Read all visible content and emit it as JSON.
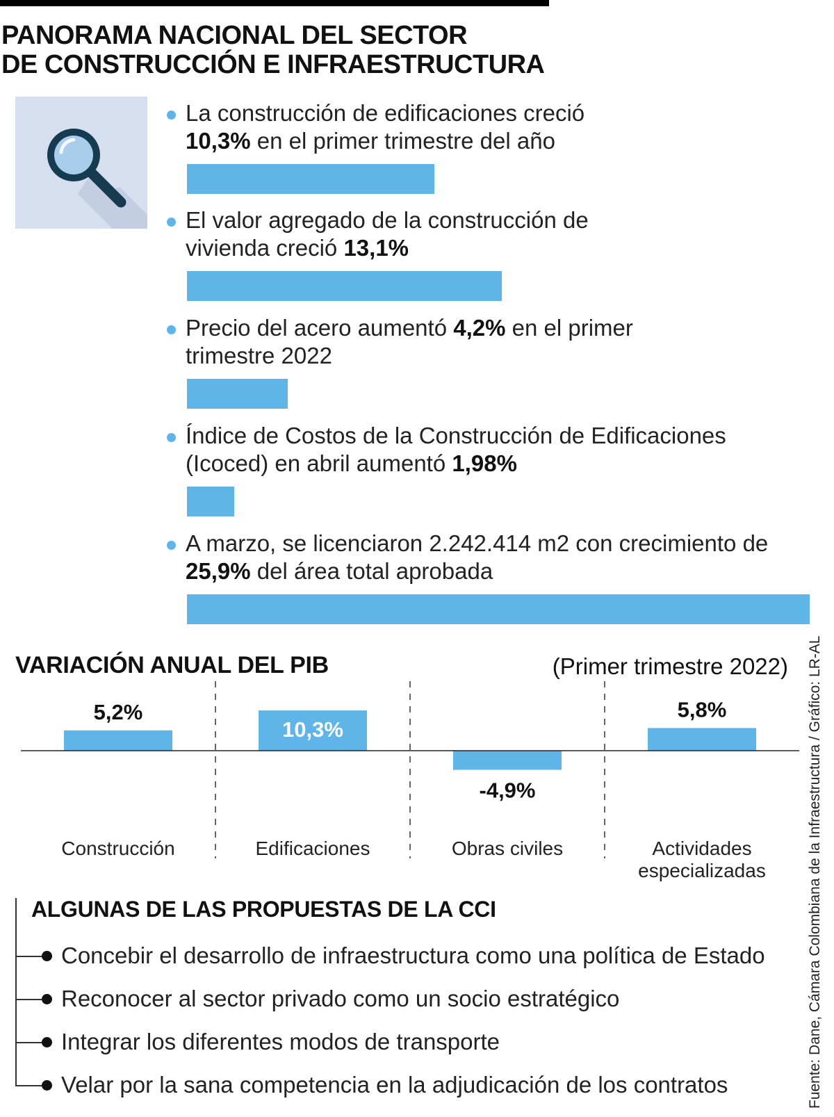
{
  "title": {
    "line1": "PANORAMA NACIONAL DEL SECTOR",
    "line2": "DE CONSTRUCCIÓN E INFRAESTRUCTURA"
  },
  "icon": {
    "name": "magnifying-glass-icon"
  },
  "stats": [
    {
      "pre": "La construcción de edificaciones creció ",
      "br": true,
      "bold": "10,3%",
      "post": " en el primer trimestre del año",
      "value": 10.3
    },
    {
      "pre": "El valor agregado de la construcción de vivienda creció ",
      "br": false,
      "bold": "13,1%",
      "post": "",
      "value": 13.1
    },
    {
      "pre": "Precio del acero aumentó ",
      "br": false,
      "bold": "4,2%",
      "post": " en el primer trimestre 2022",
      "value": 4.2
    },
    {
      "pre": "Índice de Costos de la Construcción de Edificaciones (Icoced) en abril  aumentó ",
      "br": false,
      "bold": "1,98%",
      "post": "",
      "value": 1.98
    },
    {
      "pre": "A marzo, se licenciaron 2.242.414 m2 con crecimiento de ",
      "br": false,
      "bold": "25,9%",
      "post": " del área total aprobada",
      "value": 25.9
    }
  ],
  "pib": {
    "title": "VARIACIÓN ANUAL DEL PIB",
    "subtitle": "(Primer trimestre 2022)"
  },
  "chart_data": {
    "type": "bar",
    "title": "VARIACIÓN ANUAL DEL PIB",
    "subtitle": "(Primer trimestre 2022)",
    "categories": [
      "Construcción",
      "Edificaciones",
      "Obras civiles",
      "Actividades especializadas"
    ],
    "category_lines": [
      [
        "Construcción"
      ],
      [
        "Edificaciones"
      ],
      [
        "Obras civiles"
      ],
      [
        "Actividades",
        "especializadas"
      ]
    ],
    "values": [
      5.2,
      10.3,
      -4.9,
      5.8
    ],
    "value_labels": [
      "5,2%",
      "10,3%",
      "-4,9%",
      "5,8%"
    ],
    "bar_color": "#5fb4e8",
    "xlabel": "",
    "ylabel": "",
    "ylim": [
      -6,
      11
    ],
    "grid": false
  },
  "cci": {
    "title": "ALGUNAS DE LAS PROPUESTAS DE LA CCI",
    "items": [
      "Concebir el desarrollo de infraestructura como una política de Estado",
      "Reconocer al sector privado como un socio estratégico",
      "Integrar los diferentes modos de transporte",
      "Velar por la sana competencia en la adjudicación de los contratos"
    ]
  },
  "source": "Fuente: Dane, Cámara Colombiana de la Infraestructura / Gráfico: LR-AL",
  "colors": {
    "accent": "#5fb4e8",
    "icon_bg": "#d5dff0",
    "icon_dark": "#163a50"
  }
}
